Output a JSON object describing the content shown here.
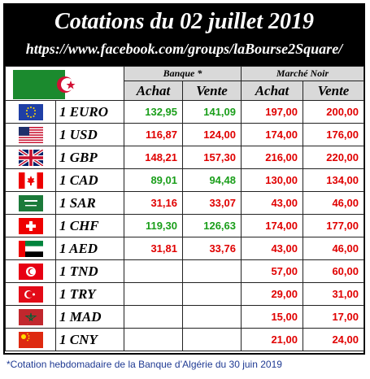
{
  "header": {
    "title": "Cotations du 02 juillet 2019",
    "url": "https://www.facebook.com/groups/laBourse2Square/"
  },
  "columns": {
    "group_bank": "Banque *",
    "group_black": "Marché Noir",
    "buy": "Achat",
    "sell": "Vente"
  },
  "colors": {
    "green": "#1a9e1a",
    "red": "#e00000"
  },
  "rows": [
    {
      "flag": "eu-flag-icon",
      "label": "1 EURO",
      "bank_buy": "132,95",
      "bank_sell": "141,09",
      "bank_color": "green",
      "black_buy": "197,00",
      "black_sell": "200,00"
    },
    {
      "flag": "us-flag-icon",
      "label": "1 USD",
      "bank_buy": "116,87",
      "bank_sell": "124,00",
      "bank_color": "red",
      "black_buy": "174,00",
      "black_sell": "176,00"
    },
    {
      "flag": "uk-flag-icon",
      "label": "1 GBP",
      "bank_buy": "148,21",
      "bank_sell": "157,30",
      "bank_color": "red",
      "black_buy": "216,00",
      "black_sell": "220,00"
    },
    {
      "flag": "canada-flag-icon",
      "label": "1 CAD",
      "bank_buy": "89,01",
      "bank_sell": "94,48",
      "bank_color": "green",
      "black_buy": "130,00",
      "black_sell": "134,00"
    },
    {
      "flag": "saudi-flag-icon",
      "label": "1 SAR",
      "bank_buy": "31,16",
      "bank_sell": "33,07",
      "bank_color": "red",
      "black_buy": "43,00",
      "black_sell": "46,00"
    },
    {
      "flag": "swiss-flag-icon",
      "label": "1 CHF",
      "bank_buy": "119,30",
      "bank_sell": "126,63",
      "bank_color": "green",
      "black_buy": "174,00",
      "black_sell": "177,00"
    },
    {
      "flag": "uae-flag-icon",
      "label": "1 AED",
      "bank_buy": "31,81",
      "bank_sell": "33,76",
      "bank_color": "red",
      "black_buy": "43,00",
      "black_sell": "46,00"
    },
    {
      "flag": "tunisia-flag-icon",
      "label": "1 TND",
      "bank_buy": "",
      "bank_sell": "",
      "bank_color": "red",
      "black_buy": "57,00",
      "black_sell": "60,00"
    },
    {
      "flag": "turkey-flag-icon",
      "label": "1 TRY",
      "bank_buy": "",
      "bank_sell": "",
      "bank_color": "red",
      "black_buy": "29,00",
      "black_sell": "31,00"
    },
    {
      "flag": "morocco-flag-icon",
      "label": "1 MAD",
      "bank_buy": "",
      "bank_sell": "",
      "bank_color": "red",
      "black_buy": "15,00",
      "black_sell": "17,00"
    },
    {
      "flag": "china-flag-icon",
      "label": "1 CNY",
      "bank_buy": "",
      "bank_sell": "",
      "bank_color": "red",
      "black_buy": "21,00",
      "black_sell": "24,00"
    }
  ],
  "footnote": "*Cotation hebdomadaire de la Banque d’Algérie du 30 juin 2019"
}
